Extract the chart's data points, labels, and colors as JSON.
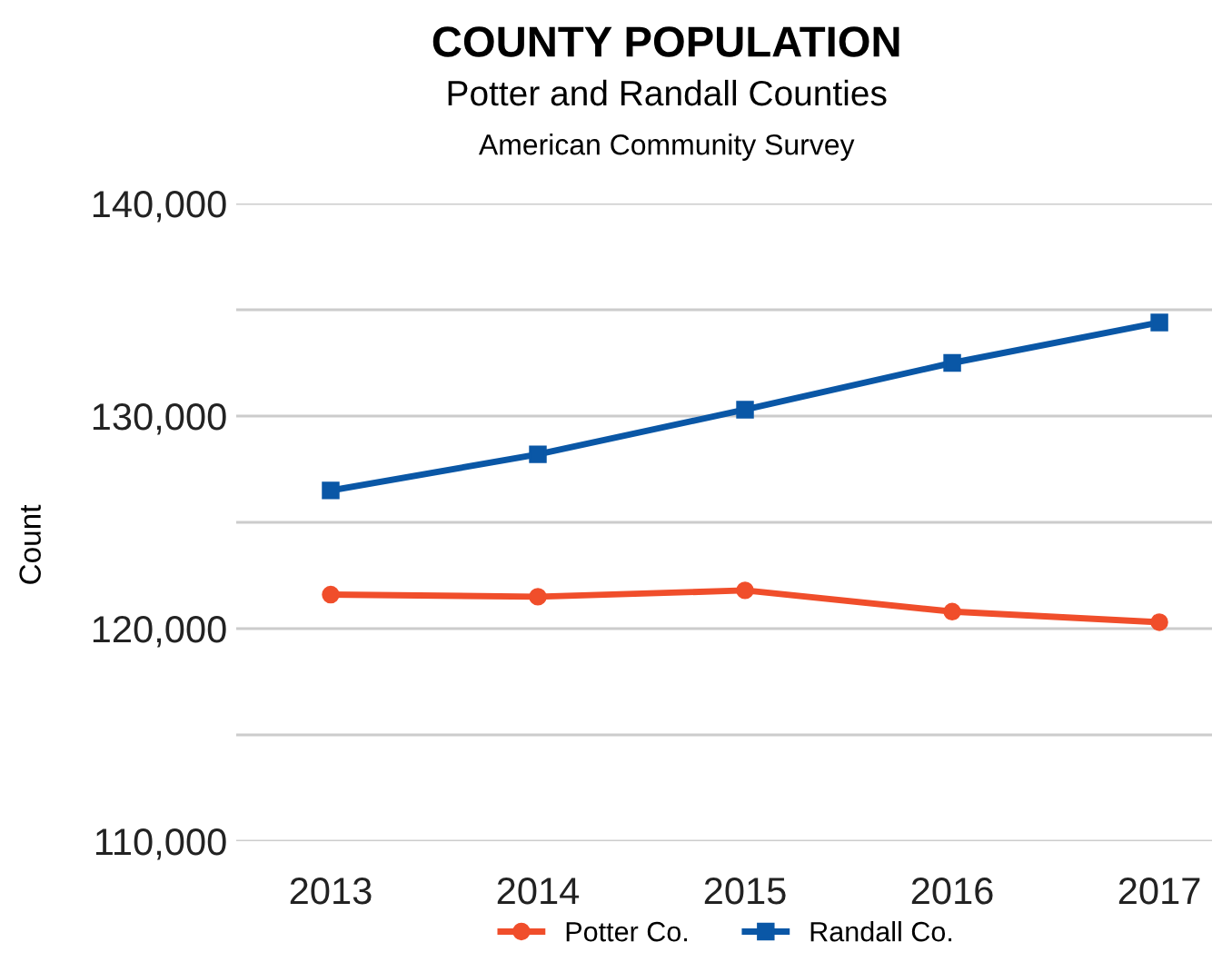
{
  "chart_data": {
    "type": "line",
    "title": "COUNTY POPULATION",
    "subtitle": "Potter and Randall Counties",
    "annotations": [
      "American Community Survey"
    ],
    "ylabel": "Count",
    "categories": [
      "2013",
      "2014",
      "2015",
      "2016",
      "2017"
    ],
    "series": [
      {
        "name": "Potter Co.",
        "color": "#f04e2b",
        "marker": "circle",
        "values": [
          121600,
          121500,
          121800,
          120800,
          120300
        ]
      },
      {
        "name": "Randall Co.",
        "color": "#0a57a6",
        "marker": "square",
        "values": [
          126500,
          128200,
          130300,
          132500,
          134400
        ]
      }
    ],
    "ylim": [
      110000,
      140000
    ],
    "yticks": [
      {
        "value": 110000,
        "label": "110,000"
      },
      {
        "value": 115000,
        "label": null
      },
      {
        "value": 120000,
        "label": "120,000"
      },
      {
        "value": 125000,
        "label": null
      },
      {
        "value": 130000,
        "label": "130,000"
      },
      {
        "value": 135000,
        "label": null
      },
      {
        "value": 140000,
        "label": "140,000"
      }
    ],
    "grid": "y",
    "legend": "bottom",
    "line_style": "solid"
  }
}
